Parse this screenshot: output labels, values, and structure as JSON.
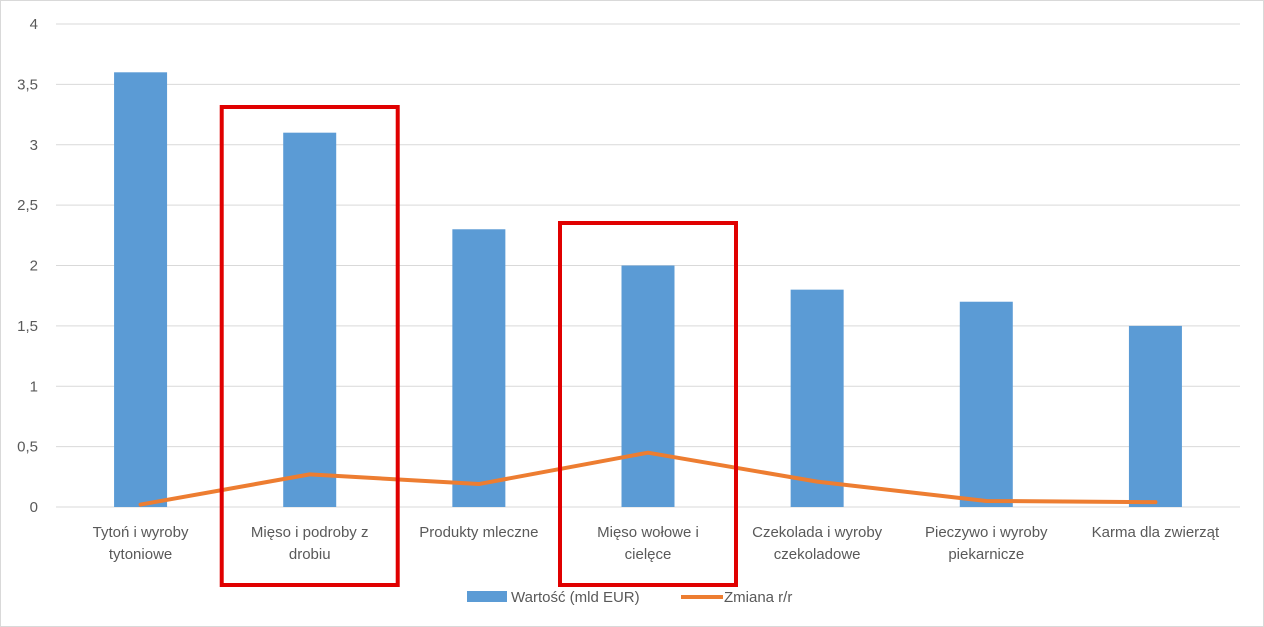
{
  "chart_data": {
    "type": "bar",
    "categories": [
      [
        "Tytoń i wyroby",
        "tytoniowe"
      ],
      [
        "Mięso i podroby z",
        "drobiu"
      ],
      [
        "Produkty mleczne"
      ],
      [
        "Mięso wołowe i",
        "cielęce"
      ],
      [
        "Czekolada i wyroby",
        "czekoladowe"
      ],
      [
        "Pieczywo i wyroby",
        "piekarnicze"
      ],
      [
        "Karma dla zwierząt"
      ]
    ],
    "series": [
      {
        "name": "Wartość (mld EUR)",
        "type": "bar",
        "color": "#5b9bd5",
        "values": [
          3.6,
          3.1,
          2.3,
          2.0,
          1.8,
          1.7,
          1.5
        ]
      },
      {
        "name": "Zmiana r/r",
        "type": "line",
        "color": "#ed7d31",
        "values": [
          0.02,
          0.27,
          0.19,
          0.45,
          0.21,
          0.05,
          0.04
        ]
      }
    ],
    "y_ticks": [
      "0",
      "0,5",
      "1",
      "1,5",
      "2",
      "2,5",
      "3",
      "3,5",
      "4"
    ],
    "ylim": [
      0,
      4
    ],
    "grid": true,
    "legend_position": "bottom",
    "highlight_boxes": [
      1,
      3
    ],
    "highlight_color": "#e00000"
  }
}
